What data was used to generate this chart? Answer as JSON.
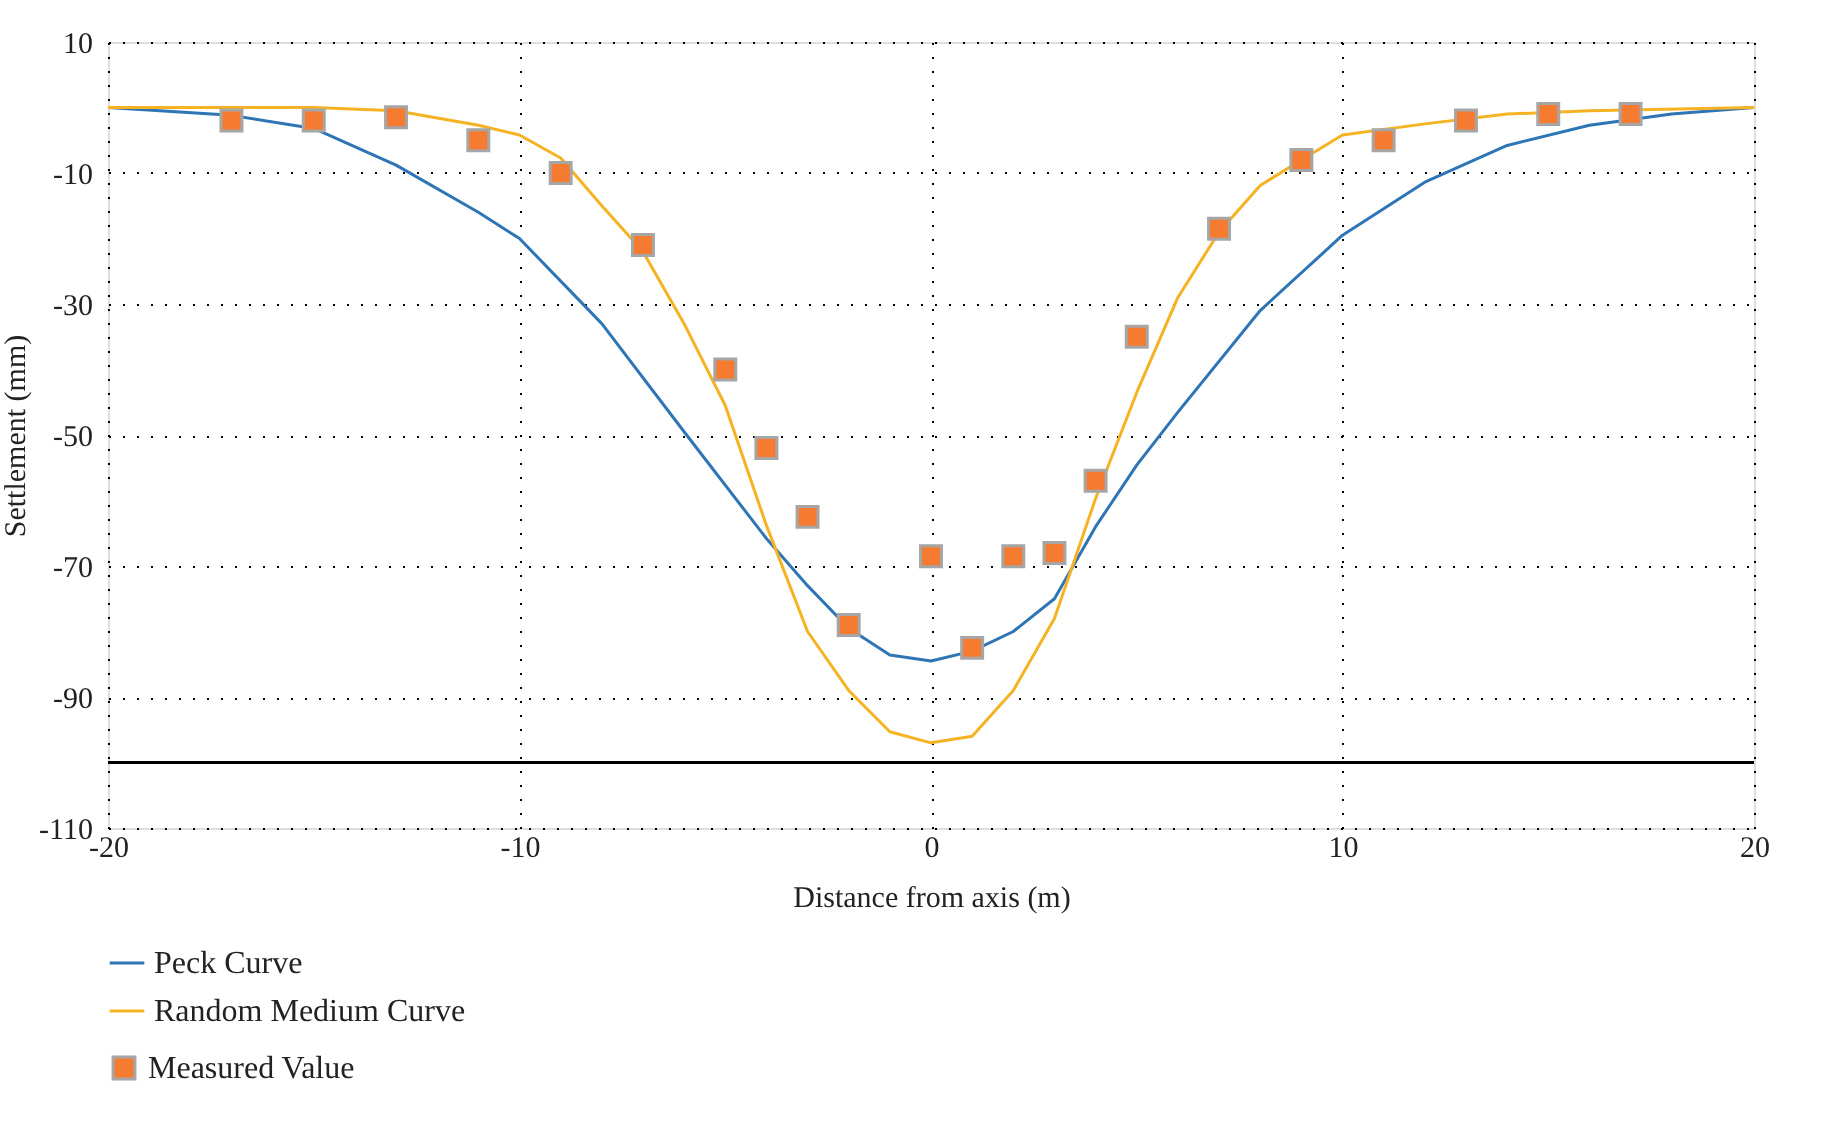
{
  "chart_data": {
    "type": "line",
    "xlabel": "Distance from axis (m)",
    "ylabel": "Settlement (mm)",
    "xlim": [
      -20,
      20
    ],
    "xticks": [
      -20,
      -10,
      0,
      10,
      20
    ],
    "ylim": [
      -110,
      10
    ],
    "yticks": [
      -110,
      -90,
      -70,
      -50,
      -30,
      -10,
      10
    ],
    "grid": true,
    "legend": "bottom left",
    "ref_lines": [
      {
        "axis": "y",
        "value": -100,
        "color": "#000000"
      }
    ],
    "series": [
      {
        "name": "Peck Curve",
        "color": "#2e75b6",
        "marker": "none",
        "line_style": "solid",
        "x": [
          -20,
          -17,
          -15,
          -13,
          -11,
          -10,
          -8,
          -6,
          -4,
          -3,
          -2,
          -1,
          0,
          1,
          2,
          3,
          4,
          5,
          6,
          8,
          10,
          12,
          14,
          16,
          18,
          20
        ],
        "values": [
          0,
          -1.2,
          -3.2,
          -8.8,
          -16,
          -20,
          -33,
          -49.5,
          -65.8,
          -73,
          -79.5,
          -83.6,
          -84.5,
          -83,
          -80,
          -75,
          -64,
          -54.6,
          -46.5,
          -31,
          -19.5,
          -11.4,
          -5.8,
          -2.7,
          -1,
          0
        ]
      },
      {
        "name": "Random Medium Curve",
        "color": "#f5b324",
        "marker": "none",
        "line_style": "solid",
        "x": [
          -20,
          -15,
          -13,
          -11,
          -10,
          -9,
          -8,
          -7,
          -6,
          -5,
          -4,
          -3,
          -2,
          -1,
          0,
          1,
          2,
          3,
          4,
          5,
          6,
          7,
          8,
          9,
          10,
          12,
          14,
          16,
          20
        ],
        "values": [
          0,
          0,
          -0.5,
          -2.7,
          -4.2,
          -7.7,
          -15,
          -22,
          -33,
          -45.5,
          -63.8,
          -80,
          -89,
          -95.3,
          -97,
          -96,
          -89,
          -78,
          -59.7,
          -43.5,
          -29,
          -19,
          -11.9,
          -8,
          -4.2,
          -2.5,
          -1,
          -0.5,
          0
        ]
      },
      {
        "name": "Measured Value",
        "type": "scatter",
        "color": "#f47b30",
        "marker": "square",
        "x": [
          -17,
          -15,
          -13,
          -11,
          -9,
          -7,
          -5,
          -4,
          -3,
          -2,
          0,
          1,
          2,
          3,
          4,
          5,
          7,
          9,
          11,
          13,
          15,
          17
        ],
        "values": [
          -2,
          -2,
          -1.5,
          -5,
          -10,
          -21,
          -40,
          -52,
          -62.5,
          -79,
          -68.5,
          -82.5,
          -68.5,
          -68,
          -57,
          -35,
          -18.5,
          -8,
          -5,
          -2,
          -1,
          -1
        ]
      }
    ]
  }
}
